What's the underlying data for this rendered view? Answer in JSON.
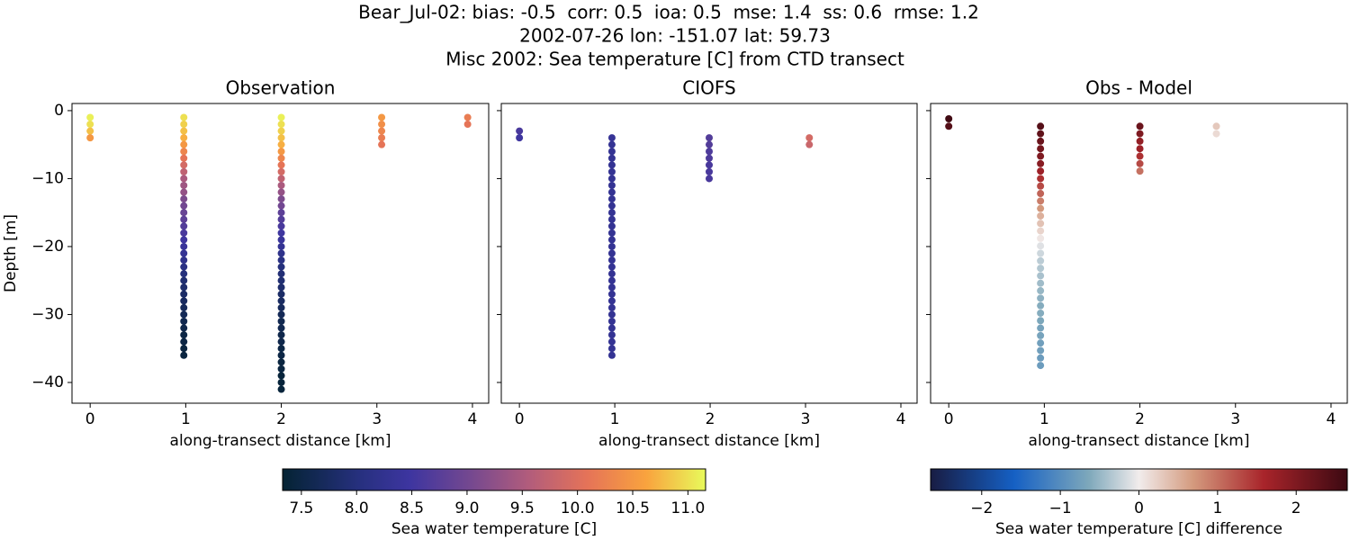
{
  "suptitle": [
    "Bear_Jul-02: bias: -0.5  corr: 0.5  ioa: 0.5  mse: 1.4  ss: 0.6  rmse: 1.2",
    "2002-07-26 lon: -151.07 lat: 59.73",
    "Misc 2002: Sea temperature [C] from CTD transect"
  ],
  "colorbars": [
    {
      "label": "Sea water temperature [C]",
      "clim": [
        7.33,
        11.16
      ],
      "cmap": [
        [
          0,
          "#042333"
        ],
        [
          0.18,
          "#26307e"
        ],
        [
          0.3,
          "#3d35a0"
        ],
        [
          0.45,
          "#77498f"
        ],
        [
          0.58,
          "#b15c7c"
        ],
        [
          0.72,
          "#e57358"
        ],
        [
          0.86,
          "#f9a33e"
        ],
        [
          1,
          "#e8fa5b"
        ]
      ],
      "ticks": [
        7.5,
        {
          "value": 8,
          "label": "8.0"
        },
        8.5,
        {
          "value": 9,
          "label": "9.0"
        },
        9.5,
        {
          "value": 10,
          "label": "10.0"
        },
        10.5,
        {
          "value": 11,
          "label": "11.0"
        }
      ]
    },
    {
      "label": "Sea water temperature [C] difference",
      "clim": [
        -2.65,
        2.65
      ],
      "cmap": [
        [
          0,
          "#181c43"
        ],
        [
          0.2,
          "#1560c4"
        ],
        [
          0.38,
          "#7ea8bb"
        ],
        [
          0.5,
          "#f1ecec"
        ],
        [
          0.63,
          "#d49a7e"
        ],
        [
          0.8,
          "#a8242a"
        ],
        [
          1,
          "#3c0912"
        ]
      ],
      "ticks": [
        {
          "value": -2,
          "label": "−2"
        },
        {
          "value": -1,
          "label": "−1"
        },
        0,
        1,
        2
      ]
    }
  ],
  "chart_data": [
    {
      "type": "scatter",
      "title": "Observation",
      "xlabel": "along-transect distance [km]",
      "ylabel": "Depth [m]",
      "colorbar": 0,
      "xlim": [
        -0.19,
        4.17
      ],
      "ylim": [
        -43.05,
        1.05
      ],
      "xticks": [
        0,
        1,
        2,
        3,
        4
      ],
      "yticks": [
        0,
        {
          "value": -10,
          "label": "−10"
        },
        {
          "value": -20,
          "label": "−20"
        },
        {
          "value": -30,
          "label": "−30"
        },
        {
          "value": -40,
          "label": "−40"
        }
      ],
      "ytick_labels": true,
      "profiles": [
        {
          "x": 0,
          "depths": [
            -1,
            -2,
            -3,
            -4
          ],
          "values": [
            11.1,
            11.0,
            10.8,
            10.5
          ]
        },
        {
          "x": 0.98,
          "depths": [
            -1,
            -2,
            -3,
            -4,
            -5,
            -6,
            -7,
            -8,
            -9,
            -10,
            -11,
            -12,
            -13,
            -14,
            -15,
            -16,
            -17,
            -18,
            -19,
            -20,
            -21,
            -22,
            -23,
            -24,
            -25,
            -26,
            -27,
            -28,
            -29,
            -30,
            -31,
            -32,
            -33,
            -34,
            -35,
            -36
          ],
          "values": [
            11.0,
            10.9,
            10.8,
            10.7,
            10.5,
            10.3,
            10.1,
            9.9,
            9.7,
            9.5,
            9.4,
            9.3,
            9.1,
            9.0,
            8.9,
            8.8,
            8.7,
            8.6,
            8.5,
            8.4,
            8.3,
            8.2,
            8.1,
            8.0,
            7.9,
            7.85,
            7.8,
            7.75,
            7.7,
            7.65,
            7.6,
            7.55,
            7.5,
            7.5,
            7.45,
            7.45
          ]
        },
        {
          "x": 2.0,
          "depths": [
            -1,
            -2,
            -3,
            -4,
            -5,
            -6,
            -7,
            -8,
            -9,
            -10,
            -11,
            -12,
            -13,
            -14,
            -15,
            -16,
            -17,
            -18,
            -19,
            -20,
            -21,
            -22,
            -23,
            -24,
            -25,
            -26,
            -27,
            -28,
            -29,
            -30,
            -31,
            -32,
            -33,
            -34,
            -35,
            -36,
            -37,
            -38,
            -39,
            -40,
            -41
          ],
          "values": [
            11.1,
            11.0,
            10.9,
            10.8,
            10.7,
            10.5,
            10.3,
            10.1,
            9.9,
            9.7,
            9.5,
            9.3,
            9.1,
            9.0,
            8.8,
            8.7,
            8.6,
            8.5,
            8.4,
            8.3,
            8.2,
            8.1,
            8.0,
            7.95,
            7.9,
            7.85,
            7.8,
            7.75,
            7.7,
            7.65,
            7.6,
            7.6,
            7.55,
            7.55,
            7.5,
            7.5,
            7.45,
            7.45,
            7.4,
            7.4,
            7.4
          ]
        },
        {
          "x": 3.05,
          "depths": [
            -1,
            -2,
            -3,
            -4,
            -5
          ],
          "values": [
            10.5,
            10.4,
            10.3,
            10.2,
            10.1
          ]
        },
        {
          "x": 3.95,
          "depths": [
            -1,
            -2
          ],
          "values": [
            10.2,
            10.1
          ]
        }
      ]
    },
    {
      "type": "scatter",
      "title": "CIOFS",
      "xlabel": "along-transect distance [km]",
      "colorbar": 0,
      "xlim": [
        -0.19,
        4.17
      ],
      "ylim": [
        -43.05,
        1.05
      ],
      "xticks": [
        0,
        1,
        2,
        3,
        4
      ],
      "yticks": [
        0,
        -10,
        -20,
        -30,
        -40
      ],
      "ytick_labels": false,
      "profiles": [
        {
          "x": 0,
          "depths": [
            -3,
            -4
          ],
          "values": [
            8.6,
            8.5
          ]
        },
        {
          "x": 0.97,
          "depths": [
            -4,
            -5,
            -6,
            -7,
            -8,
            -9,
            -10,
            -11,
            -12,
            -13,
            -14,
            -15,
            -16,
            -17,
            -18,
            -19,
            -20,
            -21,
            -22,
            -23,
            -24,
            -25,
            -26,
            -27,
            -28,
            -29,
            -30,
            -31,
            -32,
            -33,
            -34,
            -35,
            -36
          ],
          "values": [
            8.35,
            8.3,
            8.3,
            8.3,
            8.3,
            8.3,
            8.3,
            8.3,
            8.3,
            8.3,
            8.3,
            8.3,
            8.3,
            8.3,
            8.3,
            8.3,
            8.3,
            8.3,
            8.3,
            8.3,
            8.3,
            8.3,
            8.3,
            8.3,
            8.3,
            8.3,
            8.3,
            8.3,
            8.3,
            8.3,
            8.3,
            8.3,
            8.3
          ]
        },
        {
          "x": 1.99,
          "depths": [
            -4,
            -5,
            -6,
            -7,
            -8,
            -9,
            -10
          ],
          "values": [
            8.7,
            8.7,
            8.65,
            8.65,
            8.6,
            8.6,
            8.6
          ]
        },
        {
          "x": 3.04,
          "depths": [
            -4,
            -5
          ],
          "values": [
            9.9,
            9.8
          ]
        }
      ]
    },
    {
      "type": "scatter",
      "title": "Obs - Model",
      "xlabel": "along-transect distance [km]",
      "colorbar": 1,
      "xlim": [
        -0.19,
        4.17
      ],
      "ylim": [
        -43.05,
        1.05
      ],
      "xticks": [
        0,
        1,
        2,
        3,
        4
      ],
      "yticks": [
        0,
        -10,
        -20,
        -30,
        -40
      ],
      "ytick_labels": false,
      "profiles": [
        {
          "x": 0,
          "depths": [
            -1.2,
            -2.3
          ],
          "values": [
            2.6,
            2.4
          ]
        },
        {
          "x": 0.96,
          "depths": [
            -2.3,
            -3.4,
            -4.5,
            -5.6,
            -6.7,
            -7.8,
            -8.9,
            -10,
            -11.1,
            -12.2,
            -13.3,
            -14.4,
            -15.5,
            -16.6,
            -17.7,
            -18.8,
            -19.9,
            -21,
            -22.1,
            -23.2,
            -24.3,
            -25.4,
            -26.5,
            -27.6,
            -28.7,
            -29.8,
            -30.9,
            -32,
            -33.1,
            -34.2,
            -35.3,
            -36.4,
            -37.5
          ],
          "values": [
            2.4,
            2.3,
            2.2,
            2.1,
            2.0,
            1.9,
            1.7,
            1.5,
            1.3,
            1.1,
            0.9,
            0.7,
            0.5,
            0.35,
            0.2,
            0.05,
            -0.1,
            -0.2,
            -0.3,
            -0.35,
            -0.4,
            -0.45,
            -0.5,
            -0.55,
            -0.6,
            -0.6,
            -0.65,
            -0.7,
            -0.7,
            -0.75,
            -0.75,
            -0.8,
            -0.8
          ]
        },
        {
          "x": 2.0,
          "depths": [
            -2.3,
            -3.4,
            -4.5,
            -5.6,
            -6.7,
            -7.8,
            -8.9
          ],
          "values": [
            2.2,
            2.0,
            1.8,
            1.7,
            1.5,
            1.3,
            1.0
          ]
        },
        {
          "x": 2.8,
          "depths": [
            -2.3,
            -3.4
          ],
          "values": [
            0.3,
            0.15
          ]
        }
      ]
    }
  ]
}
